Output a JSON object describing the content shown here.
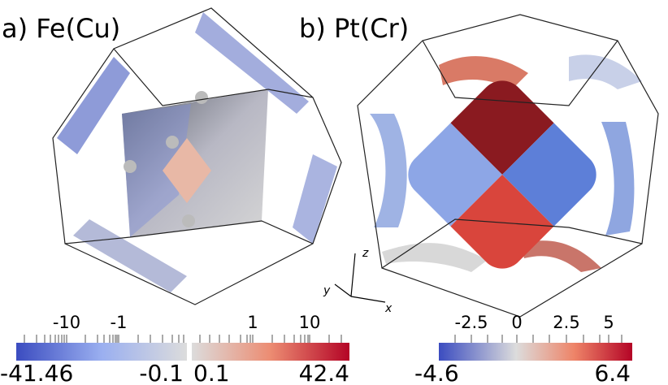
{
  "panels": [
    {
      "label": "a) Fe(Cu)",
      "colorbars": [
        {
          "tick_labels": [
            "-10",
            "-1"
          ],
          "min_label": "-41.46",
          "max_label": "-0.1"
        },
        {
          "tick_labels": [
            "1",
            "10"
          ],
          "min_label": "0.1",
          "max_label": "42.4"
        }
      ]
    },
    {
      "label": "b) Pt(Cr)",
      "colorbars": [
        {
          "tick_labels": [
            "-2.5",
            "0",
            "2.5",
            "5"
          ],
          "min_label": "-4.6",
          "max_label": "6.4"
        }
      ]
    }
  ],
  "axes_triad": {
    "x": "x",
    "y": "y",
    "z": "z"
  }
}
